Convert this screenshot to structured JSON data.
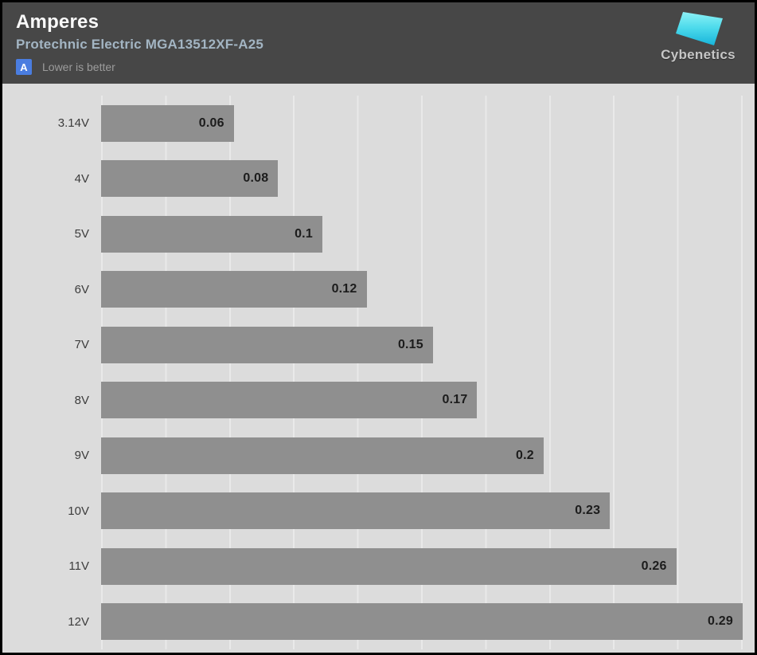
{
  "header": {
    "title": "Amperes",
    "subtitle": "Protechnic Electric MGA13512XF-A25",
    "badge_letter": "A",
    "badge_note": "Lower is better",
    "brand": "Cybenetics"
  },
  "colors": {
    "header_bg": "#474747",
    "chart_bg": "#dcdcdc",
    "gridline": "#e9e9e9",
    "bar": "#8f8f8f",
    "badge_blue": "#4a7de0",
    "subtitle_text": "#a3b5c3",
    "value_text": "#1c1c1c",
    "logo_cyan_light": "#8df0f5",
    "logo_cyan_dark": "#17b4da"
  },
  "chart_data": {
    "type": "bar",
    "orientation": "horizontal",
    "title": "Amperes",
    "subtitle": "Protechnic Electric MGA13512XF-A25",
    "note": "Lower is better",
    "categories": [
      "3.14V",
      "4V",
      "5V",
      "6V",
      "7V",
      "8V",
      "9V",
      "10V",
      "11V",
      "12V"
    ],
    "values": [
      0.06,
      0.08,
      0.1,
      0.12,
      0.15,
      0.17,
      0.2,
      0.23,
      0.26,
      0.29
    ],
    "xlim": [
      0,
      0.29
    ],
    "xlabel": "",
    "ylabel": "",
    "grid": true,
    "gridline_count": 10,
    "legend": false,
    "value_labels": "inside-end"
  }
}
